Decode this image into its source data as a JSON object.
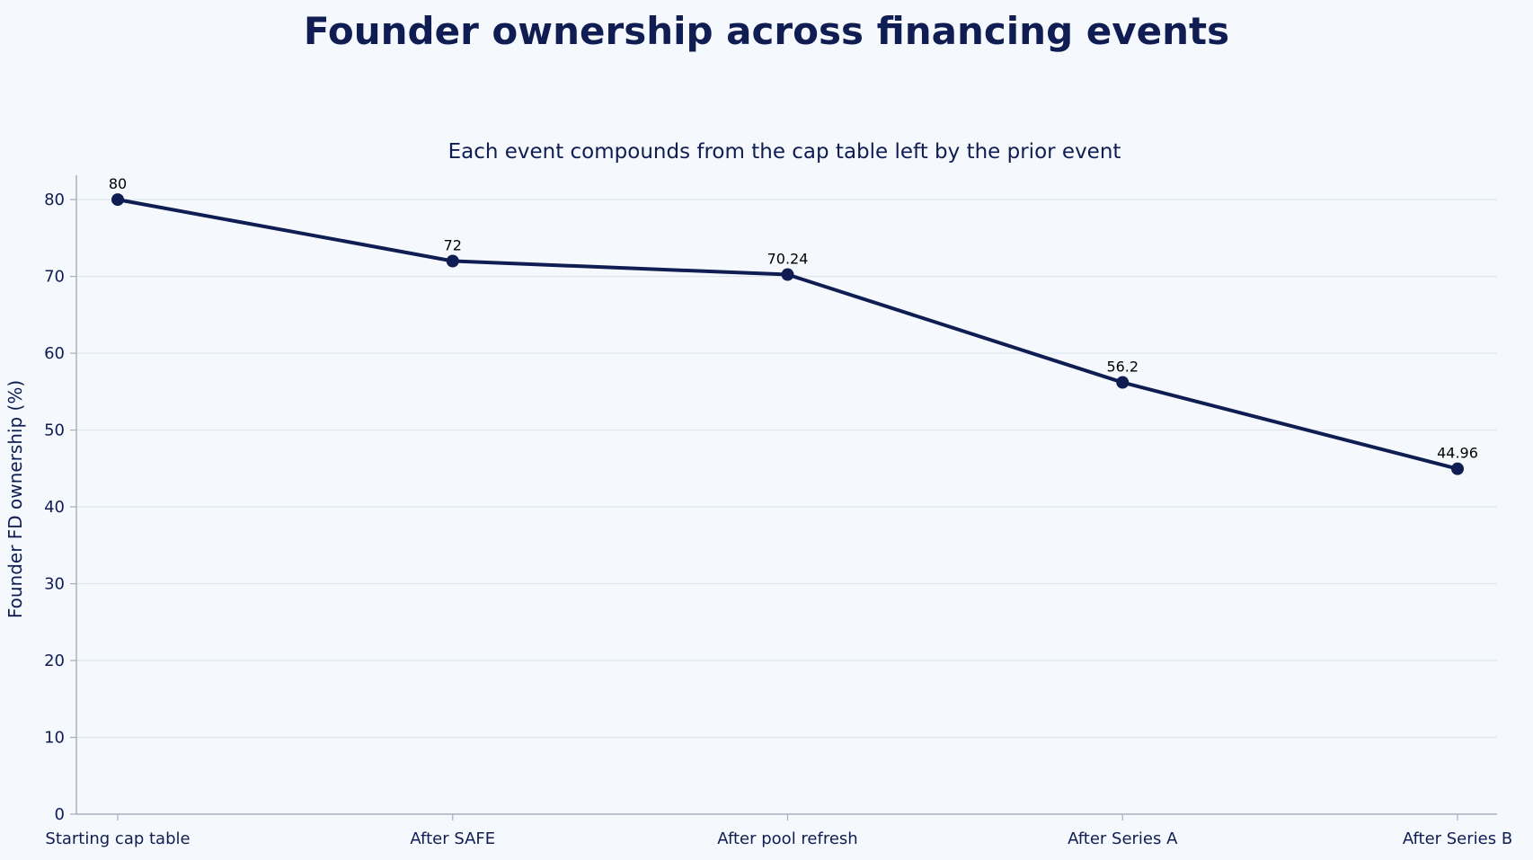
{
  "chart_data": {
    "type": "line",
    "title": "Founder ownership across financing events",
    "subtitle": "Each event compounds from the cap table left by the prior event",
    "xlabel": "",
    "ylabel": "Founder FD ownership (%)",
    "categories": [
      "Starting cap table",
      "After SAFE",
      "After pool refresh",
      "After Series A",
      "After Series B"
    ],
    "series": [
      {
        "values": [
          80,
          72,
          70.24,
          56.2,
          44.96
        ],
        "labels": [
          "80",
          "72",
          "70.24",
          "56.2",
          "44.96"
        ]
      }
    ],
    "ylim": [
      0,
      82
    ],
    "yticks": [
      0,
      10,
      20,
      30,
      40,
      50,
      60,
      70,
      80
    ],
    "grid": "horizontal",
    "legend": "none",
    "colors": {
      "background": "#f5f9fd",
      "line": "#0f1d52",
      "text": "#0f1d52",
      "grid": "#dde5ee",
      "axis": "#a7adbb"
    }
  }
}
